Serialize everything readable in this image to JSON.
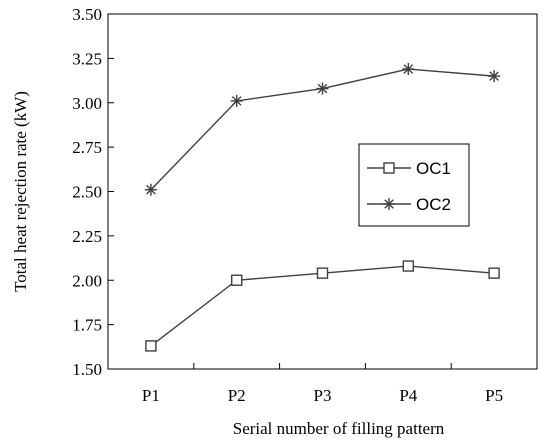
{
  "chart_data": {
    "type": "line",
    "categories": [
      "P1",
      "P2",
      "P3",
      "P4",
      "P5"
    ],
    "series": [
      {
        "name": "OC1",
        "marker": "square",
        "values": [
          1.63,
          2.0,
          2.04,
          2.08,
          2.04
        ]
      },
      {
        "name": "OC2",
        "marker": "asterisk",
        "values": [
          2.51,
          3.01,
          3.08,
          3.19,
          3.15
        ]
      }
    ],
    "xlabel": "Serial number of filling pattern",
    "ylabel": "Total heat rejection rate (kW)",
    "ylim": [
      1.5,
      3.5
    ],
    "yticks": [
      "1.50",
      "1.75",
      "2.00",
      "2.25",
      "2.50",
      "2.75",
      "3.00",
      "3.25",
      "3.50"
    ],
    "grid": false,
    "legend_position": "center-right",
    "colors": {
      "line": "#404040",
      "axis": "#000000",
      "background": "#ffffff"
    }
  }
}
